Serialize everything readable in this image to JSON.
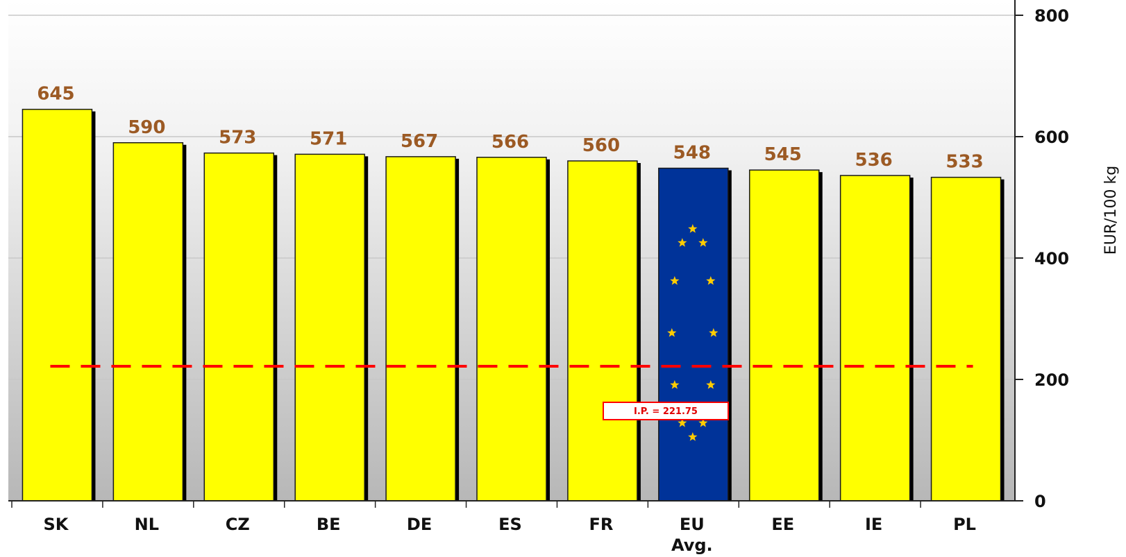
{
  "chart_data": {
    "type": "bar",
    "categories": [
      "SK",
      "NL",
      "CZ",
      "BE",
      "DE",
      "ES",
      "FR",
      "EU Avg.",
      "EE",
      "IE",
      "PL"
    ],
    "values": [
      645,
      590,
      573,
      571,
      567,
      566,
      560,
      548,
      545,
      536,
      533
    ],
    "value_labels": [
      "645",
      "590",
      "573",
      "571",
      "567",
      "566",
      "560",
      "548",
      "545",
      "536",
      "533"
    ],
    "category_lines": [
      [
        "SK"
      ],
      [
        "NL"
      ],
      [
        "CZ"
      ],
      [
        "BE"
      ],
      [
        "DE"
      ],
      [
        "ES"
      ],
      [
        "FR"
      ],
      [
        "EU",
        "Avg."
      ],
      [
        "EE"
      ],
      [
        "IE"
      ],
      [
        "PL"
      ]
    ],
    "highlight_category": "EU Avg.",
    "ylabel": "EUR/100 kg",
    "ylim": [
      0,
      800
    ],
    "yticks": [
      0,
      200,
      400,
      600,
      800
    ],
    "ytick_labels": [
      "0",
      "200",
      "400",
      "600",
      "800"
    ],
    "y_axis_side": "right",
    "grid": true,
    "reference_line": {
      "value": 221.75,
      "label": "I.P. = 221.75",
      "style": "dashed"
    },
    "colors": {
      "bar": "#ffff00",
      "highlight_bar": "#003399",
      "highlight_stars": "#ffcc00",
      "value_label": "#9c5a24",
      "reference_line": "#ff0000"
    }
  }
}
